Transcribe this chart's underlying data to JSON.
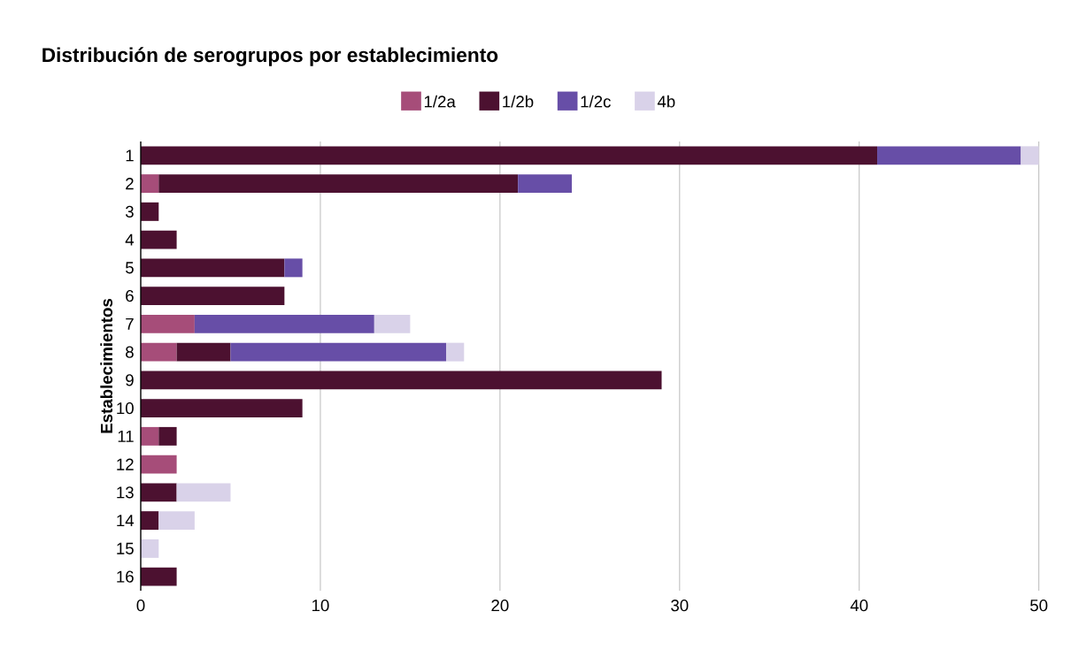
{
  "chart_data": {
    "type": "bar",
    "orientation": "horizontal",
    "stacked": true,
    "title": "Distribución de serogrupos por establecimiento",
    "ylabel": "Establecimientos",
    "categories": [
      "1",
      "2",
      "3",
      "4",
      "5",
      "6",
      "7",
      "8",
      "9",
      "10",
      "11",
      "12",
      "13",
      "14",
      "15",
      "16"
    ],
    "series": [
      {
        "name": "1/2a",
        "color": "#a64d79",
        "values": [
          null,
          1,
          null,
          null,
          null,
          null,
          3,
          2,
          null,
          null,
          1,
          2,
          null,
          null,
          null,
          null
        ]
      },
      {
        "name": "1/2b",
        "color": "#4c1130",
        "values": [
          41,
          20,
          1,
          2,
          8,
          8,
          null,
          3,
          29,
          9,
          1,
          null,
          2,
          1,
          null,
          2
        ]
      },
      {
        "name": "1/2c",
        "color": "#674ea7",
        "values": [
          8,
          3,
          null,
          null,
          1,
          null,
          10,
          12,
          null,
          null,
          null,
          null,
          null,
          null,
          null,
          null
        ]
      },
      {
        "name": "4b",
        "color": "#d9d2e9",
        "values": [
          1,
          null,
          null,
          null,
          null,
          null,
          2,
          1,
          null,
          null,
          null,
          null,
          3,
          2,
          1,
          null
        ]
      }
    ],
    "xlim": [
      0,
      50
    ],
    "xticks": [
      0,
      10,
      20,
      30,
      40,
      50
    ],
    "grid": "x",
    "legend": "top"
  }
}
